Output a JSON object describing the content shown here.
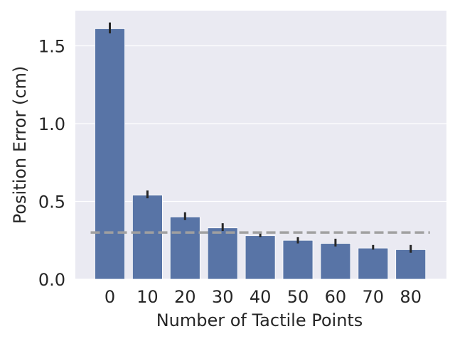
{
  "chart_data": {
    "type": "bar",
    "title": "",
    "xlabel": "Number of Tactile Points",
    "ylabel": "Position Error (cm)",
    "categories": [
      "0",
      "10",
      "20",
      "30",
      "40",
      "50",
      "60",
      "70",
      "80"
    ],
    "values": [
      1.61,
      0.54,
      0.4,
      0.33,
      0.28,
      0.25,
      0.23,
      0.2,
      0.19
    ],
    "error_bars": [
      [
        1.58,
        1.65
      ],
      [
        0.52,
        0.57
      ],
      [
        0.38,
        0.43
      ],
      [
        0.31,
        0.36
      ],
      [
        0.27,
        0.3
      ],
      [
        0.23,
        0.27
      ],
      [
        0.21,
        0.26
      ],
      [
        0.19,
        0.22
      ],
      [
        0.17,
        0.22
      ]
    ],
    "reference_line": {
      "value": 0.3,
      "style": "dashed"
    },
    "yticks": [
      "0.0",
      "0.5",
      "1.0",
      "1.5"
    ],
    "ylim": [
      0,
      1.72
    ],
    "grid": true,
    "colors": {
      "bar": "#5874a6",
      "background": "#eaeaf2",
      "grid": "#ffffff",
      "error_bar": "#262626",
      "reference_line": "#a0a0a0"
    }
  }
}
